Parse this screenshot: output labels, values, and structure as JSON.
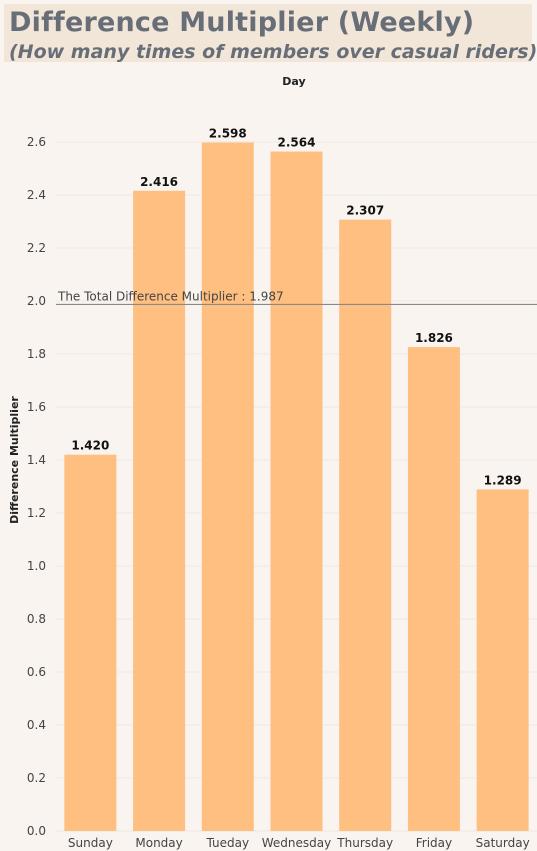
{
  "header": {
    "title": "Difference Multiplier (Weekly)",
    "subtitle": "(How many times of members over casual riders)"
  },
  "chart_data": {
    "type": "bar",
    "xlabel": "Day",
    "ylabel": "Difference Multiplier",
    "categories": [
      "Sunday",
      "Monday",
      "Tueday",
      "Wednesday",
      "Thursday",
      "Friday",
      "Saturday"
    ],
    "values": [
      1.42,
      2.416,
      2.598,
      2.564,
      2.307,
      1.826,
      1.289
    ],
    "value_labels": [
      "1.420",
      "2.416",
      "2.598",
      "2.564",
      "2.307",
      "1.826",
      "1.289"
    ],
    "yticks": [
      0.0,
      0.2,
      0.4,
      0.6,
      0.8,
      1.0,
      1.2,
      1.4,
      1.6,
      1.8,
      2.0,
      2.2,
      2.4,
      2.6
    ],
    "ytick_labels": [
      "0.0",
      "0.2",
      "0.4",
      "0.6",
      "0.8",
      "1.0",
      "1.2",
      "1.4",
      "1.6",
      "1.8",
      "2.0",
      "2.2",
      "2.4",
      "2.6"
    ],
    "ylim": [
      0,
      2.72
    ],
    "reference_line": {
      "value": 1.987,
      "label": "The Total Difference Multiplier : 1.987"
    },
    "grid": true,
    "bar_color": "#ffbf80",
    "reference_line_color": "#888888"
  }
}
